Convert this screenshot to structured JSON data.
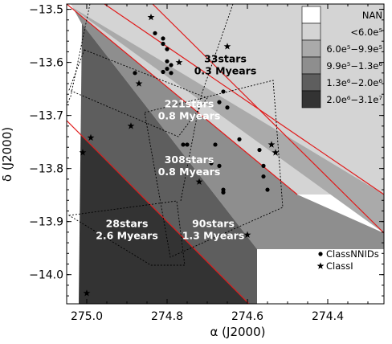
{
  "chart_data": {
    "type": "scatter",
    "xlabel": "α (J2000)",
    "ylabel": "δ (J2000)",
    "xlim": [
      275.05,
      274.26
    ],
    "ylim": [
      -14.055,
      -13.49
    ],
    "x_ticks": [
      275.0,
      274.8,
      274.6,
      274.4
    ],
    "x_tick_labels": [
      "275.0",
      "274.8",
      "274.6",
      "274.4"
    ],
    "y_ticks": [
      -13.5,
      -13.6,
      -13.7,
      -13.8,
      -13.9,
      -14.0
    ],
    "y_tick_labels": [
      "−13.5",
      "−13.6",
      "−13.7",
      "−13.8",
      "−13.9",
      "−14.0"
    ],
    "density_legend": [
      {
        "label": "NAN",
        "color": "#ffffff"
      },
      {
        "label": "<6.0e⁵",
        "color": "#d4d4d4"
      },
      {
        "label": "6.0e⁵−9.9e⁵",
        "color": "#aaaaaa"
      },
      {
        "label": "9.9e⁵−1.3e⁶",
        "color": "#8e8e8e"
      },
      {
        "label": "1.3e⁶−2.0e⁶",
        "color": "#5e5e5e"
      },
      {
        "label": "2.0e⁶−3.1e⁷",
        "color": "#333333"
      }
    ],
    "bands": [
      {
        "color": "#d4d4d4",
        "label": "33stars\n0.3 Myears",
        "label_color": "#000000",
        "label_at": [
          274.655,
          -13.6
        ]
      },
      {
        "color": "#aaaaaa",
        "label": "221stars\n0.8 Myears",
        "label_color": "#ffffff",
        "label_at": [
          274.745,
          -13.685
        ]
      },
      {
        "color": "#8e8e8e",
        "label": "308stars\n0.8 Myears",
        "label_color": "#ffffff",
        "label_at": [
          274.745,
          -13.79
        ]
      },
      {
        "color": "#5e5e5e",
        "label": "90stars\n1.3 Myears",
        "label_color": "#ffffff",
        "label_at": [
          274.685,
          -13.91
        ]
      },
      {
        "color": "#333333",
        "label": "28stars\n2.6 Myears",
        "label_color": "#ffffff",
        "label_at": [
          274.9,
          -13.91
        ]
      }
    ],
    "series": [
      {
        "name": "ClassNNIDs",
        "marker": "circle",
        "x": [
          274.83,
          274.81,
          274.8,
          274.81,
          274.8,
          274.79,
          274.8,
          274.81,
          274.79,
          274.88,
          274.66,
          274.67,
          274.65,
          274.68,
          274.62,
          274.69,
          274.67,
          274.66,
          274.66,
          274.57,
          274.56,
          274.56,
          274.55,
          274.76,
          274.75
        ],
        "y": [
          -13.545,
          -13.555,
          -13.575,
          -13.565,
          -13.598,
          -13.605,
          -13.612,
          -13.618,
          -13.62,
          -13.62,
          -13.655,
          -13.675,
          -13.685,
          -13.755,
          -13.745,
          -13.79,
          -13.795,
          -13.84,
          -13.845,
          -13.765,
          -13.795,
          -13.815,
          -13.84,
          -13.755,
          -13.755
        ],
        "legend_label": "ClassNNIDs"
      },
      {
        "name": "ClassI",
        "marker": "star",
        "x": [
          274.84,
          274.77,
          274.65,
          274.87,
          274.89,
          274.99,
          275.01,
          274.54,
          274.53,
          274.72,
          274.6,
          275.0
        ],
        "y": [
          -13.515,
          -13.6,
          -13.57,
          -13.64,
          -13.72,
          -13.742,
          -13.77,
          -13.755,
          -13.77,
          -13.825,
          -13.925,
          -14.035
        ],
        "legend_label": "ClassI"
      }
    ]
  }
}
